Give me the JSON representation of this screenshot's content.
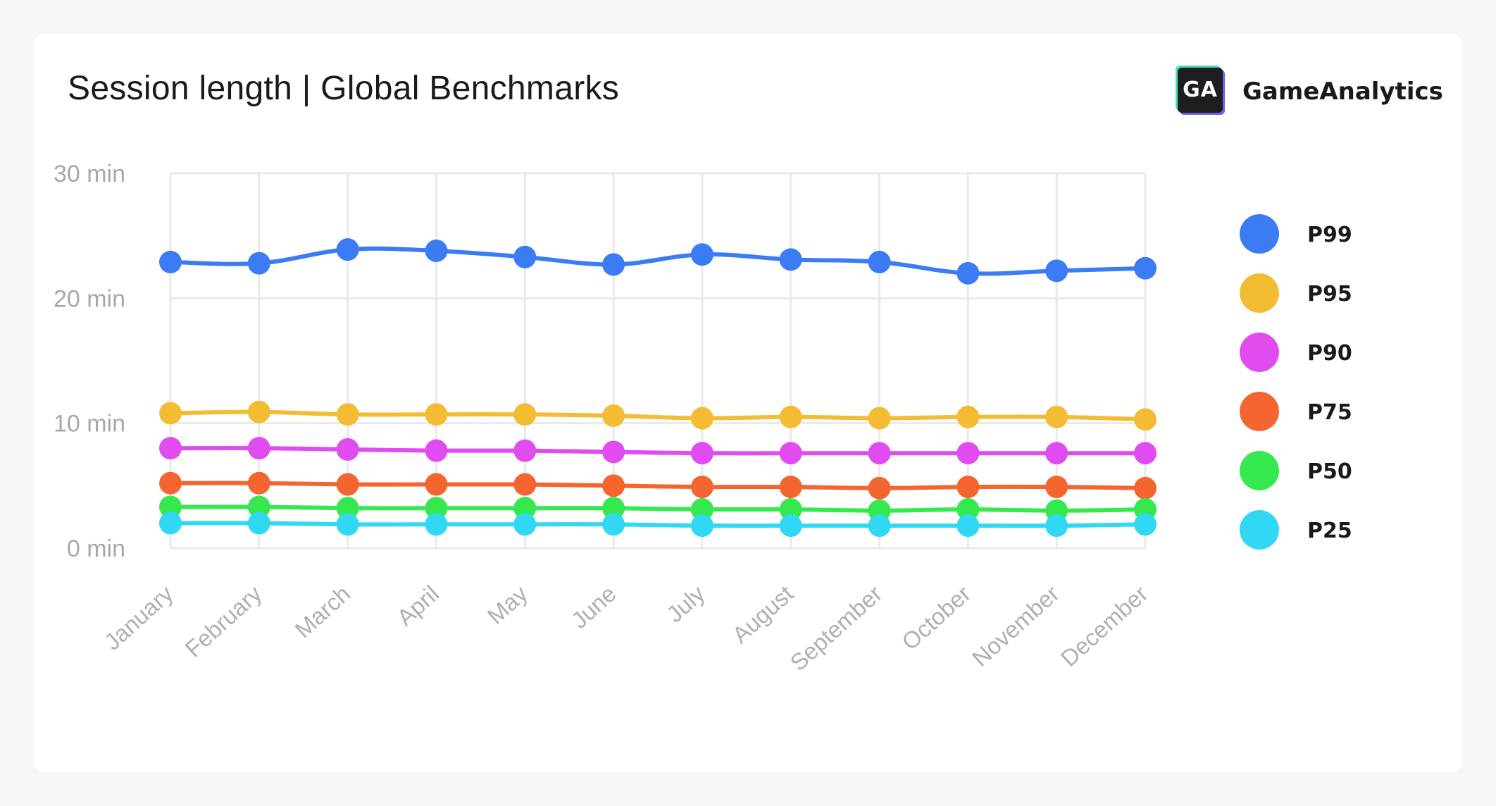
{
  "header": {
    "title": "Session length | Global Benchmarks"
  },
  "brand": {
    "logo_text": "GA",
    "name": "GameAnalytics"
  },
  "chart_data": {
    "type": "line",
    "title": "Session length | Global Benchmarks",
    "xlabel": "",
    "ylabel": "",
    "categories": [
      "January",
      "February",
      "March",
      "April",
      "May",
      "June",
      "July",
      "August",
      "September",
      "October",
      "November",
      "December"
    ],
    "y_ticks": [
      {
        "value": 0,
        "label": "0 min"
      },
      {
        "value": 10,
        "label": "10 min"
      },
      {
        "value": 20,
        "label": "20 min"
      },
      {
        "value": 30,
        "label": "30 min"
      }
    ],
    "ylim": [
      0,
      30
    ],
    "grid": true,
    "legend_position": "right",
    "series": [
      {
        "name": "P99",
        "color": "#3b7cf5",
        "values": [
          22.9,
          22.8,
          23.9,
          23.8,
          23.3,
          22.7,
          23.5,
          23.1,
          22.9,
          22.0,
          22.2,
          22.4
        ]
      },
      {
        "name": "P95",
        "color": "#f3bc32",
        "values": [
          10.8,
          10.9,
          10.7,
          10.7,
          10.7,
          10.6,
          10.4,
          10.5,
          10.4,
          10.5,
          10.5,
          10.3
        ]
      },
      {
        "name": "P90",
        "color": "#e04cf0",
        "values": [
          8.0,
          8.0,
          7.9,
          7.8,
          7.8,
          7.7,
          7.6,
          7.6,
          7.6,
          7.6,
          7.6,
          7.6
        ]
      },
      {
        "name": "P75",
        "color": "#f56530",
        "values": [
          5.2,
          5.2,
          5.1,
          5.1,
          5.1,
          5.0,
          4.9,
          4.9,
          4.8,
          4.9,
          4.9,
          4.8
        ]
      },
      {
        "name": "P50",
        "color": "#34e84e",
        "values": [
          3.3,
          3.3,
          3.2,
          3.2,
          3.2,
          3.2,
          3.1,
          3.1,
          3.0,
          3.1,
          3.0,
          3.1
        ]
      },
      {
        "name": "P25",
        "color": "#30d8f4",
        "values": [
          2.0,
          2.0,
          1.9,
          1.9,
          1.9,
          1.9,
          1.8,
          1.8,
          1.8,
          1.8,
          1.8,
          1.9
        ]
      }
    ]
  }
}
